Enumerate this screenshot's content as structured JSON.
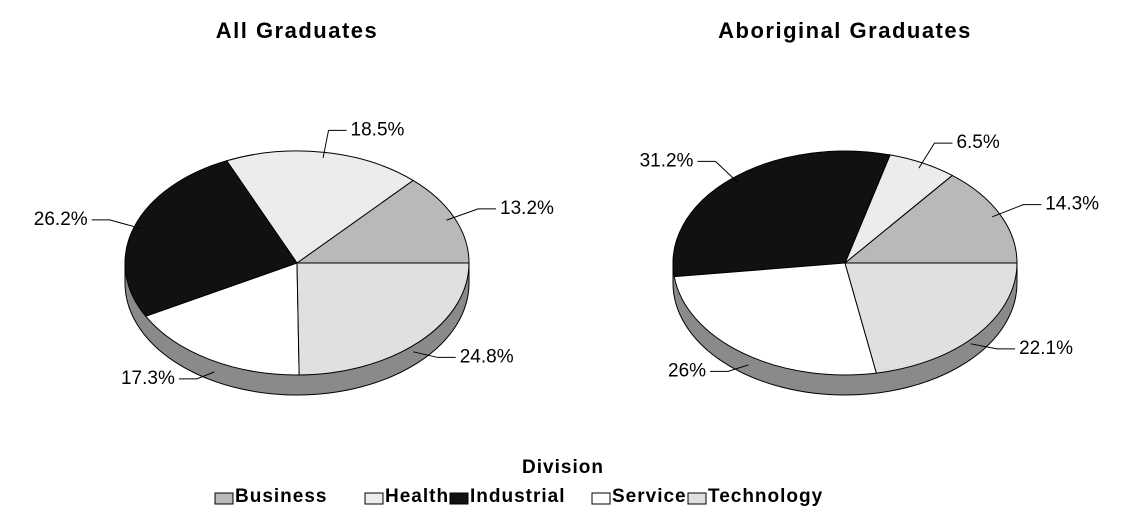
{
  "chart_data": [
    {
      "type": "pie",
      "title": "All Graduates",
      "categories": [
        "Business",
        "Health",
        "Industrial",
        "Service",
        "Technology"
      ],
      "values": [
        13.2,
        18.5,
        26.2,
        17.3,
        24.8
      ],
      "value_labels": [
        "13.2%",
        "18.5%",
        "26.2%",
        "17.3%",
        "24.8%"
      ],
      "colors": [
        "#b9b9b9",
        "#ececec",
        "#111111",
        "#ffffff",
        "#e0e0e0"
      ]
    },
    {
      "type": "pie",
      "title": "Aboriginal Graduates",
      "categories": [
        "Business",
        "Health",
        "Industrial",
        "Service",
        "Technology"
      ],
      "values": [
        14.3,
        6.5,
        31.2,
        26,
        22.1
      ],
      "value_labels": [
        "14.3%",
        "6.5%",
        "31.2%",
        "26%",
        "22.1%"
      ],
      "colors": [
        "#b9b9b9",
        "#ececec",
        "#111111",
        "#ffffff",
        "#e0e0e0"
      ]
    }
  ],
  "legend": {
    "title": "Division"
  }
}
